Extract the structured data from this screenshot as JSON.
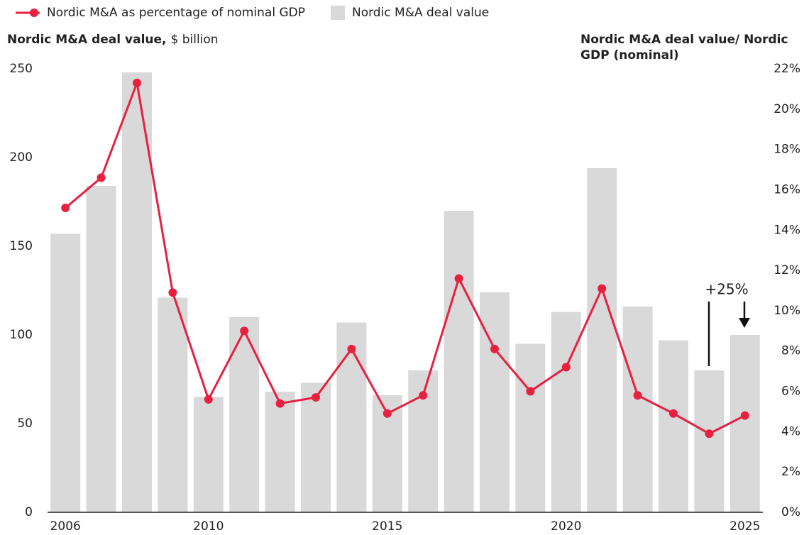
{
  "chart_data": {
    "type": "bar_line",
    "y_label": "Nordic M&A deal value,",
    "y_label_unit": "$ billion",
    "y2_label": [
      "Nordic M&A deal value/ Nordic",
      "GDP (nominal)"
    ],
    "categories": [
      "2006",
      null,
      null,
      null,
      "2010",
      null,
      null,
      null,
      null,
      "2015",
      null,
      null,
      null,
      null,
      "2020",
      null,
      null,
      null,
      null,
      "2025"
    ],
    "series": [
      {
        "name": "Nordic M&A as percentage of nominal GDP",
        "type": "line",
        "axis": "y2",
        "color": "#e8203f",
        "values": [
          15.1,
          16.6,
          21.3,
          10.9,
          5.6,
          9.0,
          5.4,
          5.7,
          8.1,
          4.9,
          5.8,
          11.6,
          8.1,
          6.0,
          7.2,
          11.1,
          5.8,
          4.9,
          3.9,
          4.8
        ]
      },
      {
        "name": "Nordic M&A deal value",
        "type": "bar",
        "axis": "y",
        "color": "#d9d9d9",
        "values": [
          157,
          184,
          248,
          121,
          65,
          110,
          68,
          73,
          107,
          66,
          80,
          170,
          124,
          95,
          113,
          194,
          116,
          97,
          80,
          100
        ]
      }
    ],
    "ylim": [
      0,
      250
    ],
    "yticks": [
      0,
      50,
      100,
      150,
      200,
      250
    ],
    "y2lim": [
      0,
      22
    ],
    "y2ticks": [
      {
        "value": 0,
        "label": "0%"
      },
      {
        "value": 2,
        "label": "2%"
      },
      {
        "value": 4,
        "label": "4%"
      },
      {
        "value": 6,
        "label": "6%"
      },
      {
        "value": 8,
        "label": "8%"
      },
      {
        "value": 10,
        "label": "10%"
      },
      {
        "value": 12,
        "label": "12%"
      },
      {
        "value": 14,
        "label": "14%"
      },
      {
        "value": 16,
        "label": "16%"
      },
      {
        "value": 18,
        "label": "18%"
      },
      {
        "value": 20,
        "label": "20%"
      },
      {
        "value": 22,
        "label": "22%"
      }
    ],
    "annotation": "+25%",
    "grid": false
  }
}
